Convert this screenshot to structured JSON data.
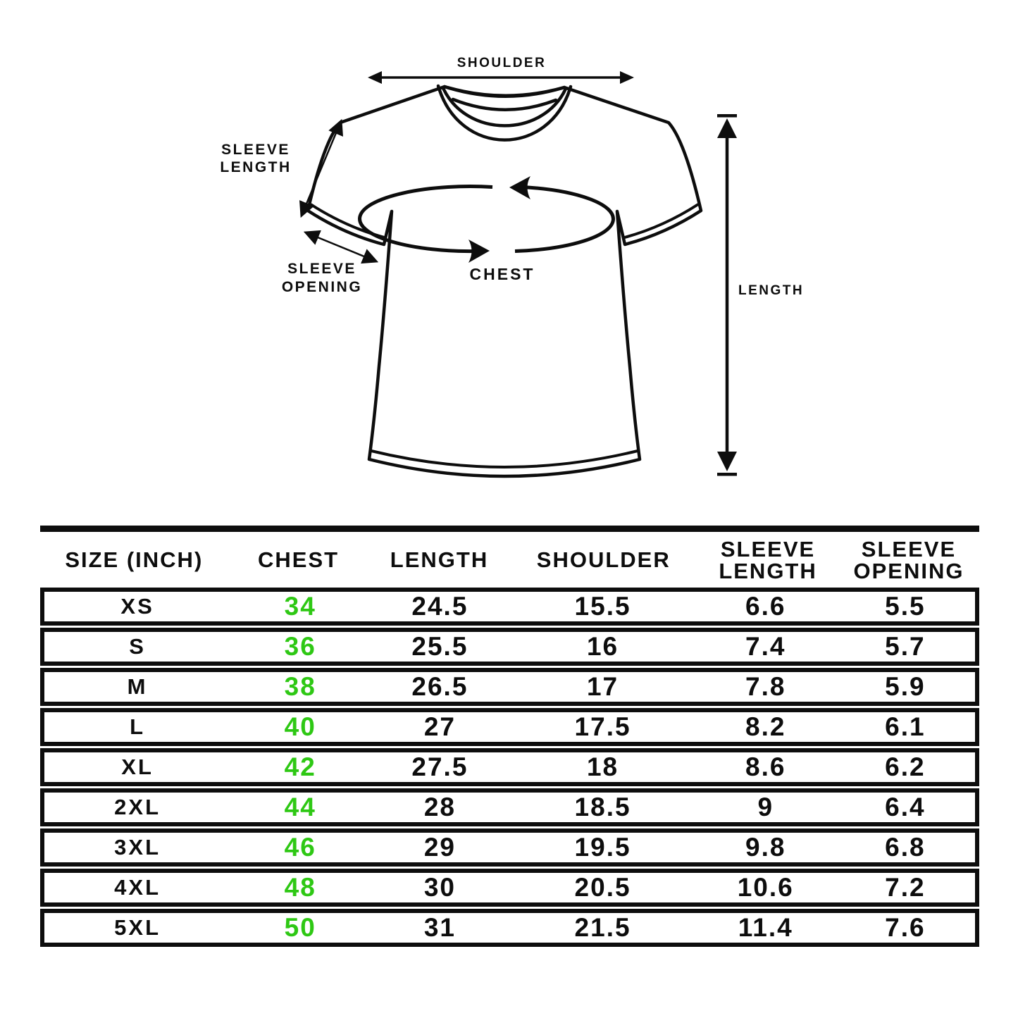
{
  "colors": {
    "bg": "#ffffff",
    "ink": "#0d0d0d",
    "green": "#2ec814"
  },
  "diagram": {
    "labels": {
      "shoulder": "SHOULDER",
      "sleeve_length_line1": "SLEEVE",
      "sleeve_length_line2": "LENGTH",
      "sleeve_opening_line1": "SLEEVE",
      "sleeve_opening_line2": "OPENING",
      "chest": "CHEST",
      "length": "LENGTH"
    }
  },
  "table": {
    "headers": [
      {
        "l1": "SIZE (INCH)"
      },
      {
        "l1": "CHEST"
      },
      {
        "l1": "LENGTH"
      },
      {
        "l1": "SHOULDER"
      },
      {
        "l1": "SLEEVE",
        "l2": "LENGTH"
      },
      {
        "l1": "SLEEVE",
        "l2": "OPENING"
      }
    ],
    "col_widths_pct": [
      20,
      15,
      15,
      20,
      15,
      15
    ],
    "green_column_index": 1,
    "rows": [
      [
        "XS",
        "34",
        "24.5",
        "15.5",
        "6.6",
        "5.5"
      ],
      [
        "S",
        "36",
        "25.5",
        "16",
        "7.4",
        "5.7"
      ],
      [
        "M",
        "38",
        "26.5",
        "17",
        "7.8",
        "5.9"
      ],
      [
        "L",
        "40",
        "27",
        "17.5",
        "8.2",
        "6.1"
      ],
      [
        "XL",
        "42",
        "27.5",
        "18",
        "8.6",
        "6.2"
      ],
      [
        "2XL",
        "44",
        "28",
        "18.5",
        "9",
        "6.4"
      ],
      [
        "3XL",
        "46",
        "29",
        "19.5",
        "9.8",
        "6.8"
      ],
      [
        "4XL",
        "48",
        "30",
        "20.5",
        "10.6",
        "7.2"
      ],
      [
        "5XL",
        "50",
        "31",
        "21.5",
        "11.4",
        "7.6"
      ]
    ]
  }
}
